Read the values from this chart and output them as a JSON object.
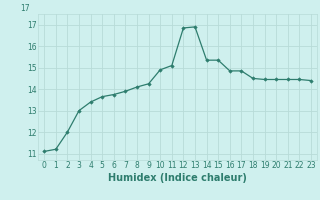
{
  "x": [
    0,
    1,
    2,
    3,
    4,
    5,
    6,
    7,
    8,
    9,
    10,
    11,
    12,
    13,
    14,
    15,
    16,
    17,
    18,
    19,
    20,
    21,
    22,
    23
  ],
  "y": [
    11.1,
    11.2,
    12.0,
    13.0,
    13.4,
    13.65,
    13.75,
    13.9,
    14.1,
    14.25,
    14.9,
    15.1,
    16.85,
    16.9,
    15.35,
    15.35,
    14.85,
    14.85,
    14.5,
    14.45,
    14.45,
    14.45,
    14.45,
    14.4
  ],
  "line_color": "#2e7d6e",
  "marker": "D",
  "marker_size": 1.8,
  "bg_color": "#cff0ee",
  "grid_color": "#b8dbd8",
  "xlabel": "Humidex (Indice chaleur)",
  "ylim": [
    10.7,
    17.5
  ],
  "yticks": [
    11,
    12,
    13,
    14,
    15,
    16,
    17
  ],
  "xticks": [
    0,
    1,
    2,
    3,
    4,
    5,
    6,
    7,
    8,
    9,
    10,
    11,
    12,
    13,
    14,
    15,
    16,
    17,
    18,
    19,
    20,
    21,
    22,
    23
  ],
  "xlim": [
    -0.5,
    23.5
  ],
  "title": "17",
  "title_color": "#2e7d6e",
  "label_fontsize": 7,
  "tick_fontsize": 5.5
}
